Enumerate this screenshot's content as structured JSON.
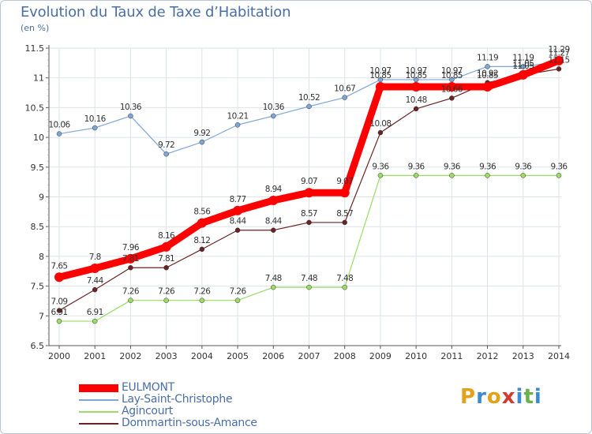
{
  "header": {
    "title": "Evolution du Taux de Taxe d’Habitation",
    "unit": "(en %)"
  },
  "legend": [
    {
      "label": "EULMONT",
      "color": "#ff0000"
    },
    {
      "label": "Lay-Saint-Christophe",
      "color": "#7ea7d8"
    },
    {
      "label": "Agincourt",
      "color": "#99dd66"
    },
    {
      "label": "Dommartin-sous-Amance",
      "color": "#6b2222"
    }
  ],
  "brand": {
    "letters": [
      "P",
      "r",
      "o",
      "x",
      "i",
      "t",
      "i"
    ],
    "colors": [
      "#e4a21c",
      "#3a8ad6",
      "#e4a21c",
      "#d63a2c",
      "#3a8ad6",
      "#6ab04c",
      "#3a8ad6"
    ]
  },
  "chart_data": {
    "type": "line",
    "title": "Evolution du Taux de Taxe d’Habitation",
    "ylabel": "(en %)",
    "xlabel": "",
    "x": [
      2000,
      2001,
      2002,
      2003,
      2004,
      2005,
      2006,
      2007,
      2008,
      2009,
      2010,
      2011,
      2012,
      2013,
      2014
    ],
    "ylim": [
      6.5,
      11.5
    ],
    "yticks": [
      6.5,
      7,
      7.5,
      8,
      8.5,
      9,
      9.5,
      10,
      10.5,
      11,
      11.5
    ],
    "ytick_labels": [
      "6.5",
      "7",
      "7.5",
      "8",
      "8.5",
      "9",
      "9.5",
      "10",
      "10.5",
      "11",
      "11.5"
    ],
    "grid": true,
    "legend_position": "bottom-left",
    "series": [
      {
        "name": "Lay-Saint-Christophe",
        "color": "#7ea7d8",
        "values": [
          10.06,
          10.16,
          10.36,
          9.72,
          9.92,
          10.21,
          10.36,
          10.52,
          10.67,
          10.97,
          10.97,
          10.97,
          11.19,
          11.19,
          11.27
        ],
        "labels": [
          "10.06",
          "10.16",
          "10.36",
          "9.72",
          "9.92",
          "10.21",
          "10.36",
          "10.52",
          "10.67",
          "10.97",
          "10.97",
          "10.97",
          "11.19",
          "11.19",
          "11.27"
        ]
      },
      {
        "name": "Agincourt",
        "color": "#99dd66",
        "values": [
          6.91,
          6.91,
          7.26,
          7.26,
          7.26,
          7.26,
          7.48,
          7.48,
          7.48,
          9.36,
          9.36,
          9.36,
          9.36,
          9.36,
          9.36
        ],
        "labels": [
          "6.91",
          "6.91",
          "7.26",
          "7.26",
          "7.26",
          "7.26",
          "7.48",
          "7.48",
          "7.48",
          "9.36",
          "9.36",
          "9.36",
          "9.36",
          "9.36",
          "9.36"
        ]
      },
      {
        "name": "Dommartin-sous-Amance",
        "color": "#6b2222",
        "values": [
          7.09,
          7.44,
          7.81,
          7.81,
          8.12,
          8.44,
          8.44,
          8.57,
          8.57,
          10.08,
          10.48,
          10.66,
          10.92,
          11.05,
          11.15
        ],
        "labels": [
          "7.09",
          "7.44",
          "7.81",
          "7.81",
          "8.12",
          "8.44",
          "8.44",
          "8.57",
          "8.57",
          "10.08",
          "10.48",
          "10.66",
          "10.92",
          "11.05",
          "11.15"
        ]
      },
      {
        "name": "EULMONT",
        "color": "#ff0000",
        "values": [
          7.65,
          7.8,
          7.96,
          8.16,
          8.56,
          8.77,
          8.94,
          9.07,
          9.07,
          10.85,
          10.85,
          10.85,
          10.85,
          11.05,
          11.29
        ],
        "labels": [
          "7.65",
          "7.8",
          "7.96",
          "8.16",
          "8.56",
          "8.77",
          "8.94",
          "9.07",
          "9.07",
          "10.85",
          "10.85",
          "10.85",
          "10.85",
          "11.05",
          "11.29"
        ]
      }
    ]
  }
}
